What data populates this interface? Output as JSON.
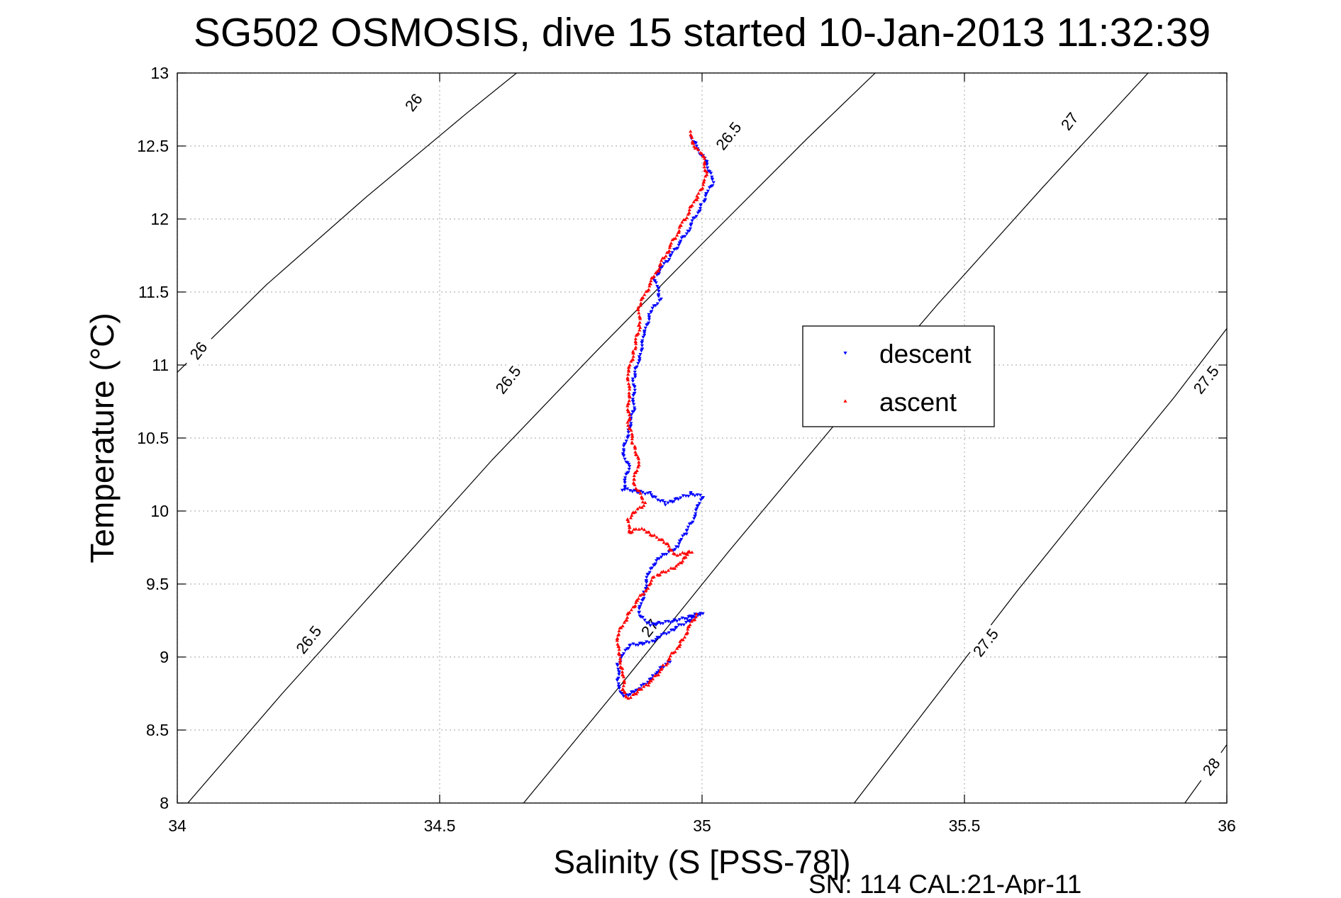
{
  "chart_data": {
    "type": "scatter",
    "title": "SG502 OSMOSIS, dive 15 started 10-Jan-2013 11:32:39",
    "xlabel": "Salinity (S [PSS-78])",
    "ylabel": "Temperature (°C)",
    "footer": "SN: 114  CAL:21-Apr-11",
    "xlim": [
      34,
      36
    ],
    "ylim": [
      8,
      13
    ],
    "x_ticks": [
      34,
      34.5,
      35,
      35.5,
      36
    ],
    "x_tick_labels": [
      "34",
      "34.5",
      "35",
      "35.5",
      "36"
    ],
    "y_ticks": [
      8,
      8.5,
      9,
      9.5,
      10,
      10.5,
      11,
      11.5,
      12,
      12.5,
      13
    ],
    "y_tick_labels": [
      "8",
      "8.5",
      "9",
      "9.5",
      "10",
      "10.5",
      "11",
      "11.5",
      "12",
      "12.5",
      "13"
    ],
    "grid": true,
    "legend_position": "center-right",
    "colors": {
      "descent": "#0000ff",
      "ascent": "#ff0000",
      "contour": "#000000",
      "grid": "#b4b4b4"
    },
    "contours": [
      {
        "level": "26",
        "points": [
          [
            34.0,
            10.95
          ],
          [
            34.17,
            11.55
          ],
          [
            34.36,
            12.15
          ],
          [
            34.55,
            12.72
          ],
          [
            34.75,
            13.3
          ]
        ]
      },
      {
        "level": "26.5",
        "points": [
          [
            34.02,
            8.0
          ],
          [
            34.2,
            8.75
          ],
          [
            34.4,
            9.55
          ],
          [
            34.6,
            10.35
          ],
          [
            34.8,
            11.1
          ],
          [
            35.0,
            11.83
          ],
          [
            35.2,
            12.55
          ],
          [
            35.33,
            13.0
          ]
        ]
      },
      {
        "level": "27",
        "points": [
          [
            34.66,
            8.0
          ],
          [
            34.85,
            8.83
          ],
          [
            35.05,
            9.72
          ],
          [
            35.25,
            10.58
          ],
          [
            35.45,
            11.42
          ],
          [
            35.65,
            12.22
          ],
          [
            35.85,
            13.0
          ]
        ]
      },
      {
        "level": "27.5",
        "points": [
          [
            35.29,
            8.0
          ],
          [
            35.45,
            8.75
          ],
          [
            35.6,
            9.45
          ],
          [
            35.75,
            10.12
          ],
          [
            35.9,
            10.78
          ],
          [
            36.0,
            11.25
          ]
        ]
      },
      {
        "level": "28",
        "points": [
          [
            35.92,
            8.0
          ],
          [
            36.0,
            8.4
          ]
        ]
      }
    ],
    "contour_labels": [
      {
        "text": "26",
        "x": 34.45,
        "y": 12.8,
        "rotation": -52
      },
      {
        "text": "26",
        "x": 34.04,
        "y": 11.1,
        "rotation": -52
      },
      {
        "text": "26.5",
        "x": 35.05,
        "y": 12.57,
        "rotation": -52
      },
      {
        "text": "26.5",
        "x": 34.63,
        "y": 10.9,
        "rotation": -52
      },
      {
        "text": "26.5",
        "x": 34.25,
        "y": 9.12,
        "rotation": -52
      },
      {
        "text": "27",
        "x": 35.7,
        "y": 12.67,
        "rotation": -52
      },
      {
        "text": "27",
        "x": 34.9,
        "y": 9.2,
        "rotation": -52
      },
      {
        "text": "27.5",
        "x": 35.96,
        "y": 10.9,
        "rotation": -52
      },
      {
        "text": "27.5",
        "x": 35.54,
        "y": 9.1,
        "rotation": -52
      },
      {
        "text": "28",
        "x": 35.97,
        "y": 8.25,
        "rotation": -52
      }
    ],
    "series": [
      {
        "name": "descent",
        "marker": "triangle-down",
        "path": [
          [
            34.98,
            12.55
          ],
          [
            35.01,
            12.38
          ],
          [
            35.02,
            12.25
          ],
          [
            35.0,
            12.1
          ],
          [
            34.97,
            11.9
          ],
          [
            34.94,
            11.75
          ],
          [
            34.91,
            11.6
          ],
          [
            34.92,
            11.45
          ],
          [
            34.9,
            11.35
          ],
          [
            34.89,
            11.2
          ],
          [
            34.88,
            11.05
          ],
          [
            34.87,
            10.9
          ],
          [
            34.87,
            10.7
          ],
          [
            34.86,
            10.55
          ],
          [
            34.85,
            10.4
          ],
          [
            34.86,
            10.3
          ],
          [
            34.85,
            10.15
          ],
          [
            34.9,
            10.12
          ],
          [
            34.93,
            10.05
          ],
          [
            34.98,
            10.12
          ],
          [
            35.0,
            10.1
          ],
          [
            34.99,
            10.0
          ],
          [
            34.97,
            9.85
          ],
          [
            34.95,
            9.75
          ],
          [
            34.92,
            9.68
          ],
          [
            34.9,
            9.6
          ],
          [
            34.89,
            9.45
          ],
          [
            34.88,
            9.3
          ],
          [
            34.9,
            9.22
          ],
          [
            34.95,
            9.25
          ],
          [
            35.0,
            9.3
          ],
          [
            34.95,
            9.2
          ],
          [
            34.9,
            9.1
          ],
          [
            34.86,
            9.08
          ],
          [
            34.84,
            8.95
          ],
          [
            34.84,
            8.82
          ],
          [
            34.85,
            8.73
          ],
          [
            34.88,
            8.78
          ],
          [
            34.91,
            8.88
          ],
          [
            34.94,
            8.98
          ]
        ]
      },
      {
        "name": "ascent",
        "marker": "triangle-up",
        "path": [
          [
            34.98,
            12.6
          ],
          [
            34.98,
            12.52
          ],
          [
            35.0,
            12.45
          ],
          [
            35.01,
            12.3
          ],
          [
            34.99,
            12.15
          ],
          [
            34.96,
            11.95
          ],
          [
            34.93,
            11.75
          ],
          [
            34.9,
            11.55
          ],
          [
            34.88,
            11.4
          ],
          [
            34.88,
            11.25
          ],
          [
            34.87,
            11.1
          ],
          [
            34.86,
            10.95
          ],
          [
            34.86,
            10.8
          ],
          [
            34.86,
            10.6
          ],
          [
            34.87,
            10.45
          ],
          [
            34.88,
            10.35
          ],
          [
            34.87,
            10.2
          ],
          [
            34.89,
            10.05
          ],
          [
            34.86,
            9.95
          ],
          [
            34.86,
            9.85
          ],
          [
            34.88,
            9.88
          ],
          [
            34.9,
            9.85
          ],
          [
            34.93,
            9.78
          ],
          [
            34.95,
            9.7
          ],
          [
            34.98,
            9.72
          ],
          [
            34.95,
            9.62
          ],
          [
            34.91,
            9.55
          ],
          [
            34.89,
            9.45
          ],
          [
            34.86,
            9.3
          ],
          [
            34.84,
            9.15
          ],
          [
            34.84,
            9.02
          ],
          [
            34.85,
            8.9
          ],
          [
            34.85,
            8.76
          ],
          [
            34.86,
            8.72
          ],
          [
            34.9,
            8.82
          ],
          [
            34.93,
            8.95
          ],
          [
            34.96,
            9.1
          ],
          [
            34.99,
            9.3
          ]
        ]
      }
    ]
  }
}
